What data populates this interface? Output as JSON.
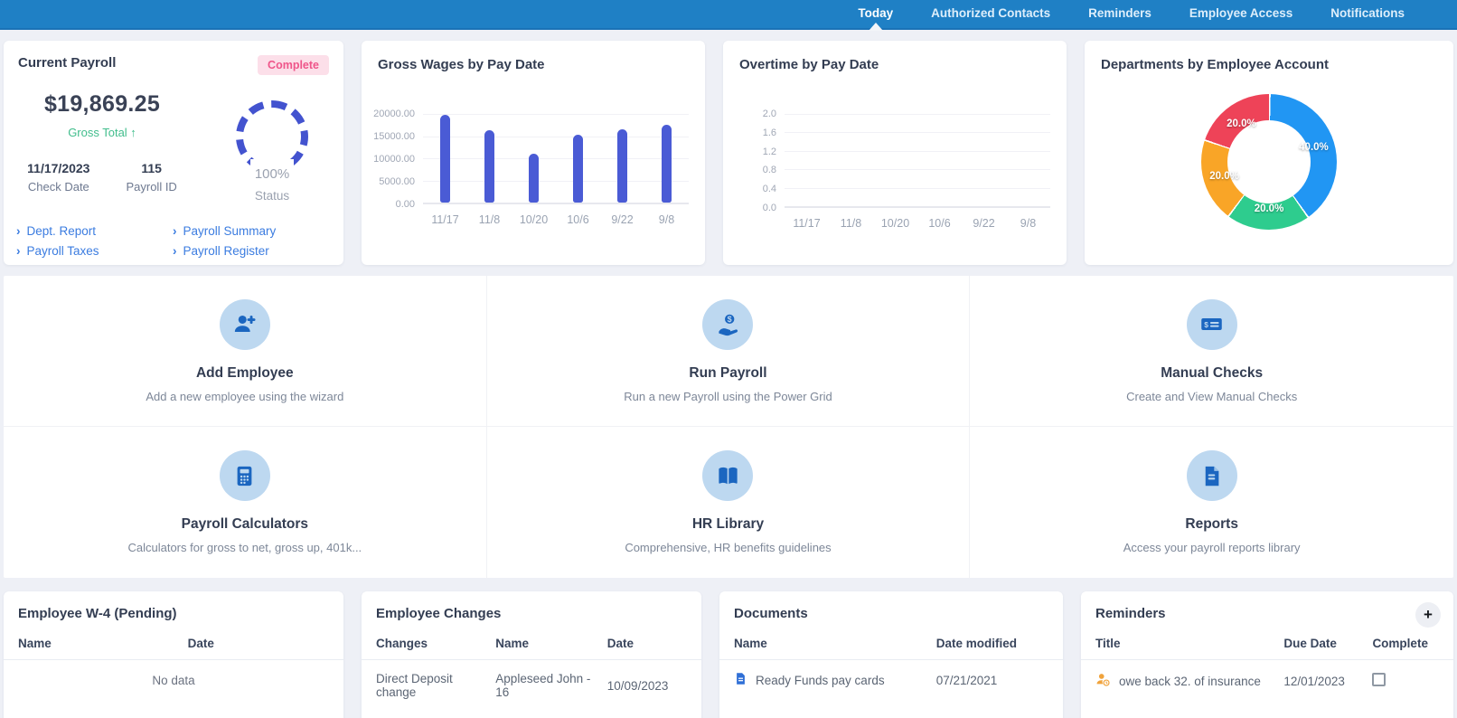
{
  "nav": {
    "items": [
      {
        "label": "Today",
        "active": true
      },
      {
        "label": "Authorized Contacts",
        "active": false
      },
      {
        "label": "Reminders",
        "active": false
      },
      {
        "label": "Employee Access",
        "active": false
      },
      {
        "label": "Notifications",
        "active": false
      }
    ]
  },
  "icons": {
    "link_chevron": "›",
    "plus": "+"
  },
  "current_payroll": {
    "title": "Current Payroll",
    "badge": "Complete",
    "amount": "$19,869.25",
    "gross_label": "Gross Total ↑",
    "check_date": {
      "value": "11/17/2023",
      "label": "Check Date"
    },
    "payroll_id": {
      "value": "115",
      "label": "Payroll ID"
    },
    "status": {
      "percent": "100%",
      "label": "Status"
    },
    "links": [
      {
        "label": "Dept. Report"
      },
      {
        "label": "Payroll Summary"
      },
      {
        "label": "Payroll Taxes"
      },
      {
        "label": "Payroll Register"
      }
    ]
  },
  "chart_data": [
    {
      "type": "bar",
      "title": "Gross Wages by Pay Date",
      "categories": [
        "11/17",
        "11/8",
        "10/20",
        "10/6",
        "9/22",
        "9/8"
      ],
      "values": [
        19869,
        16400,
        11000,
        15300,
        16500,
        17600
      ],
      "ylim": [
        0,
        20000
      ],
      "yticks": [
        "20000.00",
        "15000.00",
        "10000.00",
        "5000.00",
        "0.00"
      ],
      "grid": true,
      "bar_color": "#4a5bd5"
    },
    {
      "type": "bar",
      "title": "Overtime by Pay Date",
      "categories": [
        "11/17",
        "11/8",
        "10/20",
        "10/6",
        "9/22",
        "9/8"
      ],
      "values": [
        0,
        0,
        0,
        0,
        0,
        0
      ],
      "ylim": [
        0,
        2
      ],
      "yticks": [
        "2.0",
        "1.6",
        "1.2",
        "0.8",
        "0.4",
        "0.0"
      ],
      "grid": true,
      "bar_color": "#4a5bd5"
    },
    {
      "type": "pie",
      "title": "Departments by Employee Account",
      "donut": true,
      "slices": [
        {
          "label": "40.0%",
          "value": 40,
          "color": "#2196f3"
        },
        {
          "label": "20.0%",
          "value": 20,
          "color": "#2ecc8e"
        },
        {
          "label": "20.0%",
          "value": 20,
          "color": "#f9a527"
        },
        {
          "label": "20.0%",
          "value": 20,
          "color": "#ee4358"
        }
      ],
      "label_color": "#ffffff",
      "start_angle_deg": 0,
      "direction": "clockwise"
    }
  ],
  "actions": {
    "tiles": [
      {
        "title": "Add Employee",
        "subtitle": "Add a new employee using the wizard",
        "icon": "person-plus-icon"
      },
      {
        "title": "Run Payroll",
        "subtitle": "Run a new Payroll using the Power Grid",
        "icon": "hand-dollar-icon"
      },
      {
        "title": "Manual Checks",
        "subtitle": "Create and View Manual Checks",
        "icon": "check-dollar-icon"
      },
      {
        "title": "Payroll Calculators",
        "subtitle": "Calculators for gross to net, gross up, 401k...",
        "icon": "calculator-icon"
      },
      {
        "title": "HR Library",
        "subtitle": "Comprehensive, HR benefits guidelines",
        "icon": "open-book-icon"
      },
      {
        "title": "Reports",
        "subtitle": "Access your payroll reports library",
        "icon": "report-icon"
      }
    ]
  },
  "w4": {
    "title": "Employee W-4 (Pending)",
    "headers": [
      "Name",
      "Date"
    ],
    "empty": "No data"
  },
  "employee_changes": {
    "title": "Employee Changes",
    "headers": [
      "Changes",
      "Name",
      "Date"
    ],
    "rows": [
      {
        "changes": "Direct Deposit change",
        "name": "Appleseed John - 16",
        "date": "10/09/2023"
      }
    ]
  },
  "documents": {
    "title": "Documents",
    "headers": [
      "Name",
      "Date modified"
    ],
    "rows": [
      {
        "name": "Ready Funds pay cards",
        "date_modified": "07/21/2021"
      }
    ]
  },
  "reminders": {
    "title": "Reminders",
    "add_label": "+",
    "headers": [
      "Title",
      "Due Date",
      "Complete"
    ],
    "rows": [
      {
        "title": "owe back 32. of insurance",
        "due_date": "12/01/2023",
        "complete": false
      }
    ]
  },
  "colors": {
    "navbar": "#1f80c5",
    "link_blue": "#3b7ce0",
    "bar_indigo": "#4a5bd5",
    "ring_indigo": "#4353cf",
    "green": "#41bd8c",
    "badge_pink_bg": "#fcdfe9",
    "badge_pink_text": "#ef558a",
    "tile_icon_bg": "#bdd8f0",
    "tile_icon_fg": "#1b66c0",
    "title_navy": "#333d52",
    "donut_blue": "#2196f3",
    "donut_green": "#2ecc8e",
    "donut_orange": "#f9a527",
    "donut_red": "#ee4358"
  }
}
